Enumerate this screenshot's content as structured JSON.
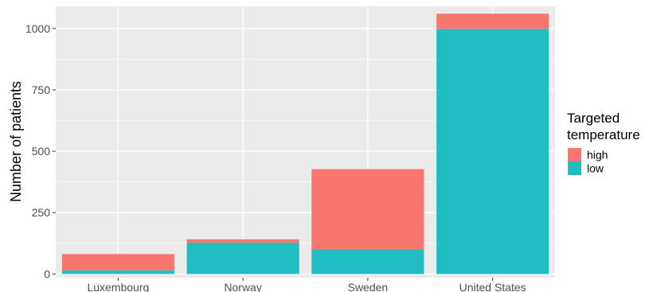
{
  "chart_data": {
    "type": "bar",
    "stacked": true,
    "categories": [
      "Luxembourg",
      "Norway",
      "Sweden",
      "United States"
    ],
    "series": [
      {
        "name": "low",
        "color": "#20BEC2",
        "values": [
          15,
          128,
          100,
          998
        ]
      },
      {
        "name": "high",
        "color": "#F8766D",
        "values": [
          66,
          13,
          327,
          62
        ]
      }
    ],
    "xlabel": "",
    "ylabel": "Number of patients",
    "ylim": [
      -15,
      1090
    ],
    "yticks": [
      0,
      250,
      500,
      750,
      1000
    ],
    "ytick_labels": [
      "0",
      "250",
      "500",
      "750",
      "1000"
    ],
    "grid": true,
    "panel_background": "#EBEBEB",
    "legend": {
      "position": "right",
      "title_lines": [
        "Targeted",
        "temperature"
      ],
      "items": [
        {
          "label": "high",
          "color": "#F8766D"
        },
        {
          "label": "low",
          "color": "#20BEC2"
        }
      ]
    }
  }
}
